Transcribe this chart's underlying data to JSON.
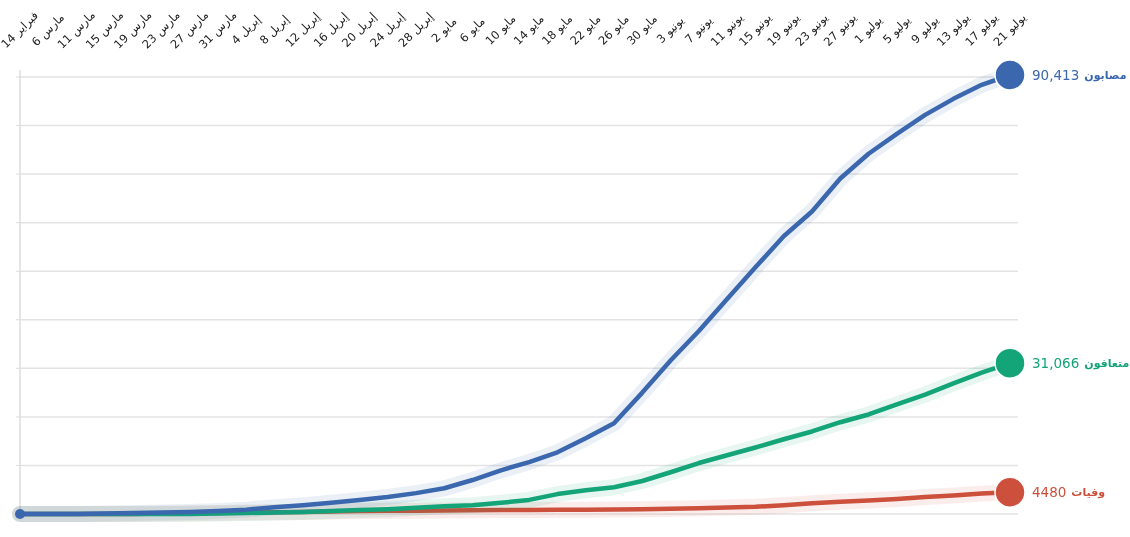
{
  "chart_data": {
    "type": "line",
    "categories": [
      "14 فبراير",
      "6 مارس",
      "11 مارس",
      "15 مارس",
      "19 مارس",
      "23 مارس",
      "27 مارس",
      "31 مارس",
      "4 إبريل",
      "8 إبريل",
      "12 إبريل",
      "16 إبريل",
      "20 إبريل",
      "24 إبريل",
      "28 إبريل",
      "2 مايو",
      "6 مايو",
      "10 مايو",
      "14 مايو",
      "18 مايو",
      "22 مايو",
      "26 مايو",
      "30 مايو",
      "3 يونيو",
      "7 يونيو",
      "11 يونيو",
      "15 يونيو",
      "19 يونيو",
      "23 يونيو",
      "27 يونيو",
      "1 يوليو",
      "5 يوليو",
      "9 يوليو",
      "13 يوليو",
      "17 يوليو",
      "21 يوليو"
    ],
    "series": [
      {
        "name": "مصابون",
        "color": "#3a67ae",
        "values": [
          0,
          0,
          0,
          100,
          200,
          300,
          400,
          600,
          900,
          1400,
          1800,
          2300,
          2900,
          3500,
          4300,
          5300,
          7000,
          9000,
          10700,
          12700,
          15600,
          18700,
          25000,
          31600,
          37700,
          44300,
          50800,
          57200,
          62300,
          69100,
          74200,
          78300,
          82200,
          85500,
          88400,
          90413
        ],
        "value_labels": [
          null,
          null,
          null,
          null,
          null,
          null,
          null,
          null,
          null,
          null,
          null,
          null,
          null,
          null,
          null,
          null,
          null,
          null,
          null,
          null,
          null,
          null,
          null,
          null,
          null,
          null,
          null,
          null,
          null,
          null,
          null,
          null,
          null,
          null,
          null,
          "90,413"
        ]
      },
      {
        "name": "متعافون",
        "color": "#13a478",
        "values": [
          0,
          0,
          0,
          0,
          0,
          0,
          0,
          100,
          200,
          300,
          400,
          600,
          800,
          1000,
          1300,
          1600,
          1800,
          2300,
          2900,
          4100,
          4900,
          5500,
          6800,
          8600,
          10500,
          12100,
          13700,
          15400,
          17000,
          18900,
          20500,
          22600,
          24600,
          26900,
          29100,
          31066
        ],
        "value_labels": [
          null,
          null,
          null,
          null,
          null,
          null,
          null,
          null,
          null,
          null,
          null,
          null,
          null,
          null,
          null,
          null,
          null,
          null,
          null,
          null,
          null,
          null,
          null,
          null,
          null,
          null,
          null,
          null,
          null,
          null,
          null,
          null,
          null,
          null,
          null,
          "31,066"
        ]
      },
      {
        "name": "وفيات",
        "color": "#cc503c",
        "values": [
          0,
          0,
          0,
          0,
          0,
          100,
          150,
          200,
          300,
          350,
          400,
          500,
          600,
          650,
          650,
          700,
          750,
          800,
          800,
          850,
          900,
          950,
          1000,
          1100,
          1200,
          1350,
          1500,
          1800,
          2200,
          2500,
          2800,
          3100,
          3500,
          3800,
          4200,
          4480
        ],
        "value_labels": [
          null,
          null,
          null,
          null,
          null,
          null,
          null,
          null,
          null,
          null,
          null,
          null,
          null,
          null,
          null,
          null,
          null,
          null,
          null,
          null,
          null,
          null,
          null,
          null,
          null,
          null,
          null,
          null,
          null,
          null,
          null,
          null,
          null,
          null,
          null,
          "4480"
        ]
      }
    ],
    "ylim": [
      0,
      90413
    ],
    "yticks": [
      {
        "value": 0,
        "label": null
      },
      {
        "value": 10000,
        "label": null
      },
      {
        "value": 20000,
        "label": null
      },
      {
        "value": 30000,
        "label": null
      },
      {
        "value": 40000,
        "label": null
      },
      {
        "value": 50000,
        "label": null
      },
      {
        "value": 60000,
        "label": null
      },
      {
        "value": 70000,
        "label": null
      },
      {
        "value": 80000,
        "label": null
      },
      {
        "value": 90000,
        "label": null
      }
    ],
    "grid": "y"
  }
}
